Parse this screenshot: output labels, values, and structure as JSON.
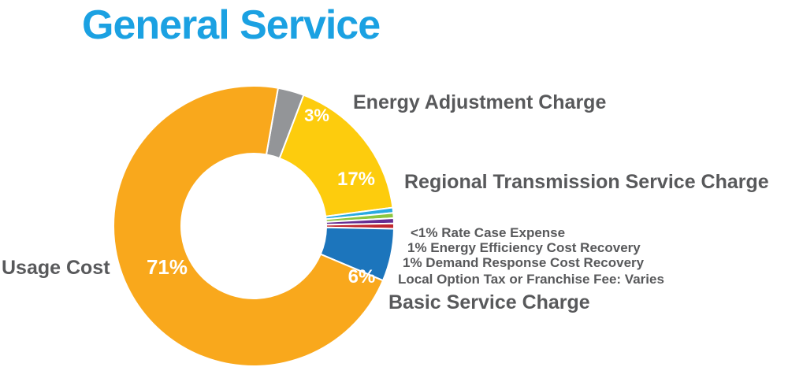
{
  "chart_data": {
    "type": "pie",
    "variant": "donut",
    "title": "General Service",
    "colors": {
      "title": "#1ba1e2",
      "label": "#58595b",
      "pct_text": "#ffffff"
    },
    "slices": [
      {
        "name": "Energy Adjustment Charge",
        "value": 3,
        "percent_label": "3%",
        "color": "#939598"
      },
      {
        "name": "Regional Transmission Service Charge",
        "value": 17,
        "percent_label": "17%",
        "color": "#fdcc0d"
      },
      {
        "name": "<1% Rate Case Expense",
        "value": 0.6,
        "percent_label": "",
        "color": "#29aae1"
      },
      {
        "name": "1% Energy Efficiency Cost Recovery",
        "value": 0.6,
        "percent_label": "",
        "color": "#8cc63f"
      },
      {
        "name": "1% Demand Response Cost Recovery",
        "value": 0.6,
        "percent_label": "",
        "color": "#662d91"
      },
      {
        "name": "Local Option Tax or Franchise Fee: Varies",
        "value": 0.6,
        "percent_label": "",
        "color": "#c1272d"
      },
      {
        "name": "Basic Service Charge",
        "value": 6,
        "percent_label": "6%",
        "color": "#1c75bc"
      },
      {
        "name": "Usage Cost",
        "value": 71,
        "percent_label": "71%",
        "color": "#f9a81c"
      }
    ]
  }
}
